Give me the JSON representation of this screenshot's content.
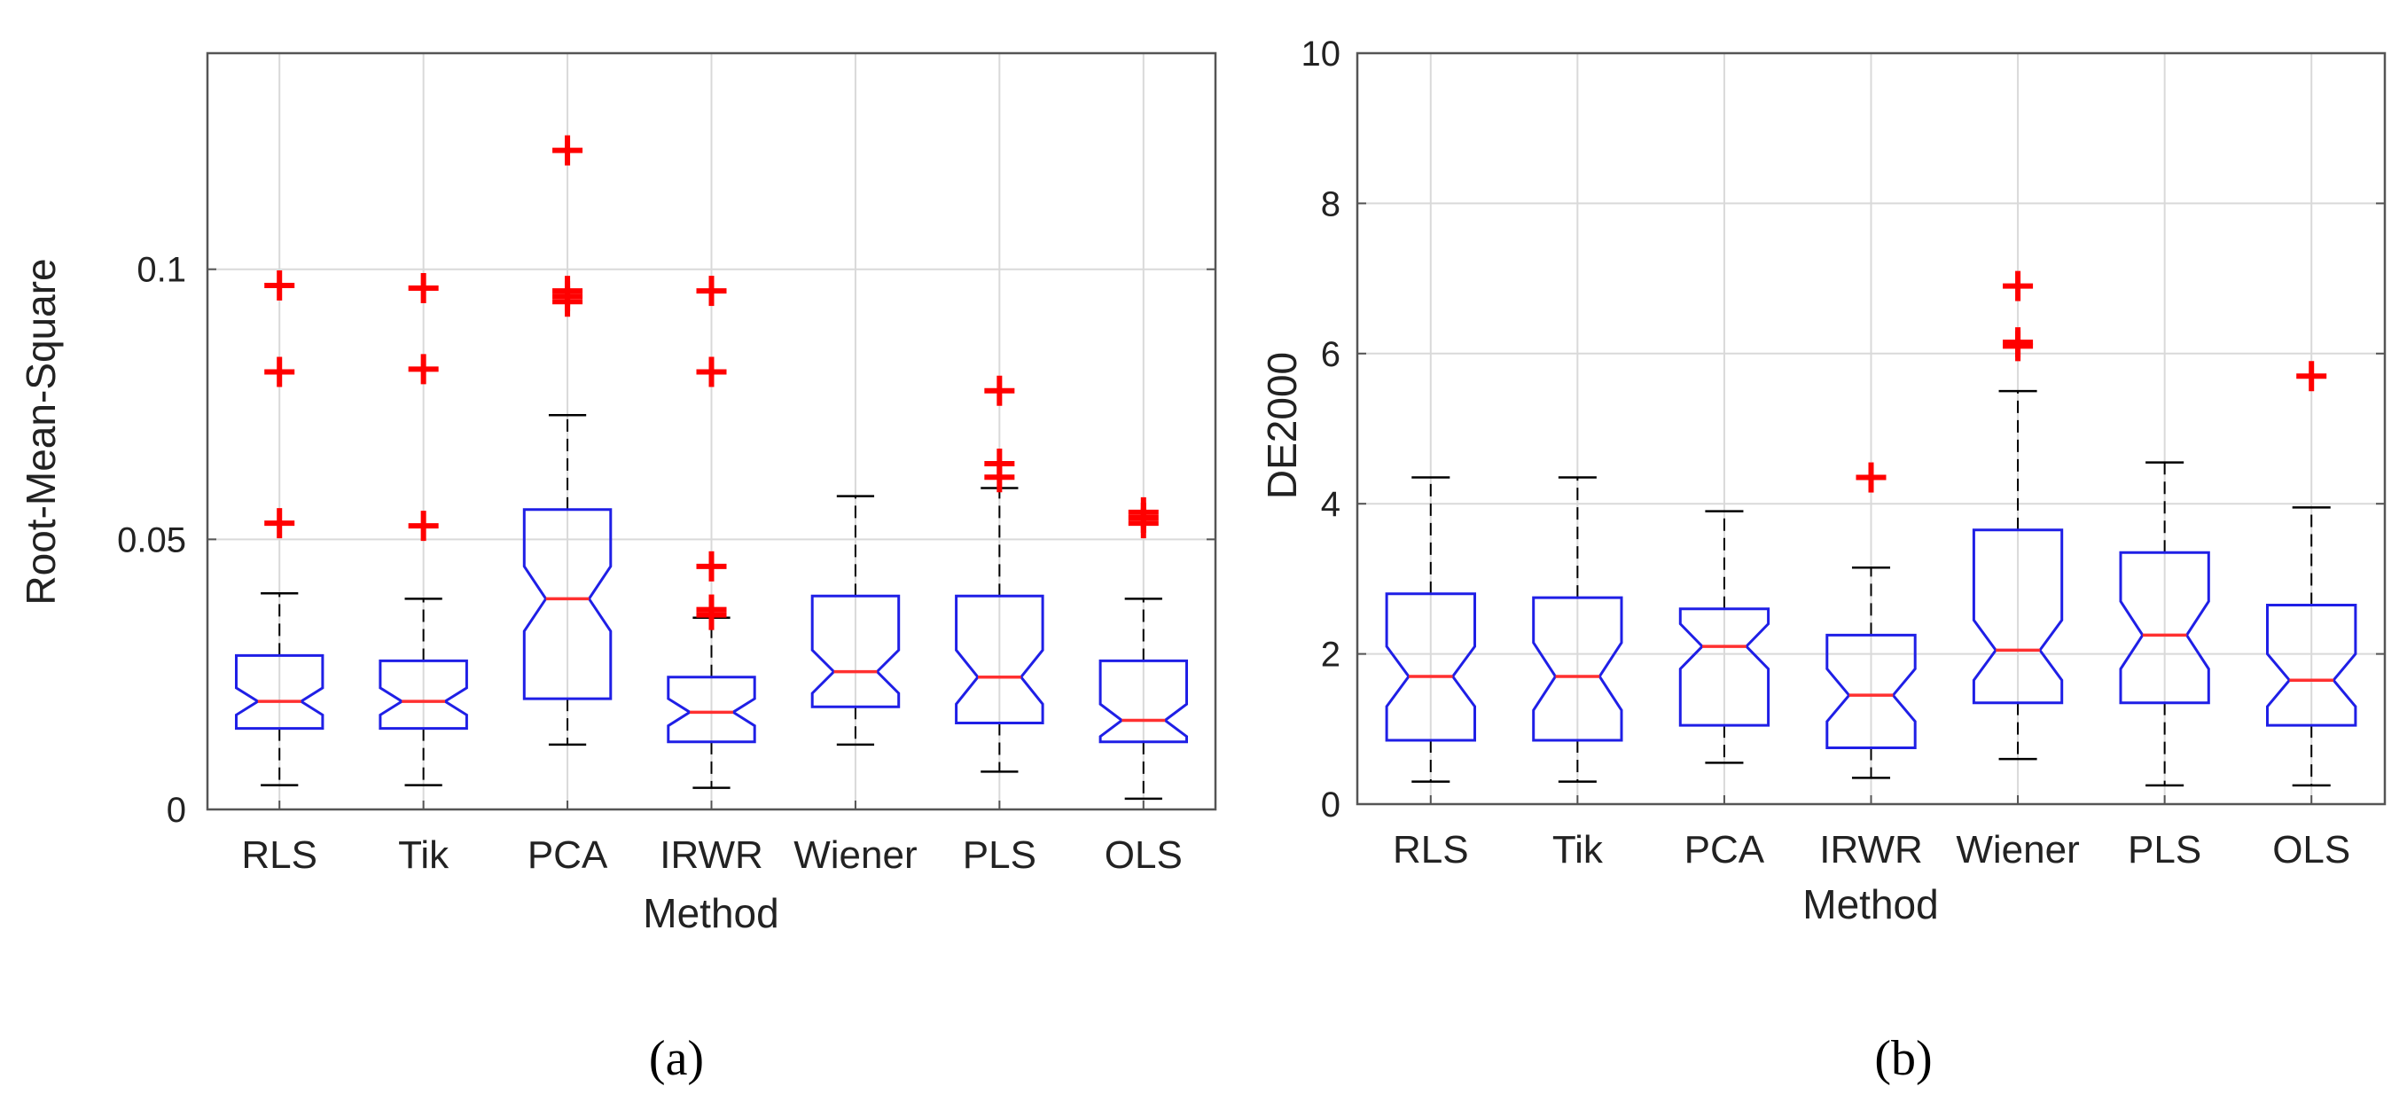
{
  "captions": {
    "a": "(a)",
    "b": "(b)"
  },
  "colors": {
    "box": "#1f1fe6",
    "median": "#ff3030",
    "whisker": "#000000",
    "outlier": "#ff0000",
    "grid": "#d9d9d9",
    "axis": "#555555"
  },
  "chart_data": [
    {
      "type": "box",
      "title": "",
      "xlabel": "Method",
      "ylabel": "Root-Mean-Square",
      "ylim": [
        0,
        0.14
      ],
      "yticks": [
        0,
        0.05,
        0.1
      ],
      "ytick_labels": [
        "0",
        "0.05",
        "0.1"
      ],
      "grid": true,
      "notched": true,
      "categories": [
        "RLS",
        "Tik",
        "PCA",
        "IRWR",
        "Wiener",
        "PLS",
        "OLS"
      ],
      "boxes": [
        {
          "label": "RLS",
          "min": 0.0045,
          "q1": 0.015,
          "median": 0.02,
          "q3": 0.0285,
          "max": 0.04,
          "notch_low": 0.0175,
          "notch_high": 0.0225,
          "outliers": [
            0.053,
            0.081,
            0.097
          ]
        },
        {
          "label": "Tik",
          "min": 0.0045,
          "q1": 0.015,
          "median": 0.02,
          "q3": 0.0275,
          "max": 0.039,
          "notch_low": 0.0175,
          "notch_high": 0.0225,
          "outliers": [
            0.0525,
            0.0815,
            0.0965
          ]
        },
        {
          "label": "PCA",
          "min": 0.012,
          "q1": 0.0205,
          "median": 0.039,
          "q3": 0.0555,
          "max": 0.073,
          "notch_low": 0.033,
          "notch_high": 0.045,
          "outliers": [
            0.094,
            0.095,
            0.096,
            0.122
          ]
        },
        {
          "label": "IRWR",
          "min": 0.004,
          "q1": 0.0125,
          "median": 0.018,
          "q3": 0.0245,
          "max": 0.0355,
          "notch_low": 0.0155,
          "notch_high": 0.0205,
          "outliers": [
            0.036,
            0.037,
            0.045,
            0.081,
            0.096
          ]
        },
        {
          "label": "Wiener",
          "min": 0.012,
          "q1": 0.019,
          "median": 0.0255,
          "q3": 0.0395,
          "max": 0.058,
          "notch_low": 0.0215,
          "notch_high": 0.0295,
          "outliers": []
        },
        {
          "label": "PLS",
          "min": 0.007,
          "q1": 0.016,
          "median": 0.0245,
          "q3": 0.0395,
          "max": 0.0595,
          "notch_low": 0.0195,
          "notch_high": 0.0295,
          "outliers": [
            0.0615,
            0.064,
            0.0775
          ]
        },
        {
          "label": "OLS",
          "min": 0.002,
          "q1": 0.0125,
          "median": 0.0165,
          "q3": 0.0275,
          "max": 0.039,
          "notch_low": 0.0135,
          "notch_high": 0.0195,
          "outliers": [
            0.053,
            0.054,
            0.055
          ]
        }
      ]
    },
    {
      "type": "box",
      "title": "",
      "xlabel": "Method",
      "ylabel": "DE2000",
      "ylim": [
        0,
        10
      ],
      "yticks": [
        0,
        2,
        4,
        6,
        8,
        10
      ],
      "ytick_labels": [
        "0",
        "2",
        "4",
        "6",
        "8",
        "10"
      ],
      "grid": true,
      "notched": true,
      "categories": [
        "RLS",
        "Tik",
        "PCA",
        "IRWR",
        "Wiener",
        "PLS",
        "OLS"
      ],
      "boxes": [
        {
          "label": "RLS",
          "min": 0.3,
          "q1": 0.85,
          "median": 1.7,
          "q3": 2.8,
          "max": 4.35,
          "notch_low": 1.3,
          "notch_high": 2.1,
          "outliers": []
        },
        {
          "label": "Tik",
          "min": 0.3,
          "q1": 0.85,
          "median": 1.7,
          "q3": 2.75,
          "max": 4.35,
          "notch_low": 1.25,
          "notch_high": 2.15,
          "outliers": []
        },
        {
          "label": "PCA",
          "min": 0.55,
          "q1": 1.05,
          "median": 2.1,
          "q3": 2.6,
          "max": 3.9,
          "notch_low": 1.8,
          "notch_high": 2.4,
          "outliers": []
        },
        {
          "label": "IRWR",
          "min": 0.35,
          "q1": 0.75,
          "median": 1.45,
          "q3": 2.25,
          "max": 3.15,
          "notch_low": 1.1,
          "notch_high": 1.8,
          "outliers": [
            4.35
          ]
        },
        {
          "label": "Wiener",
          "min": 0.6,
          "q1": 1.35,
          "median": 2.05,
          "q3": 3.65,
          "max": 5.5,
          "notch_low": 1.65,
          "notch_high": 2.45,
          "outliers": [
            6.1,
            6.15,
            6.9
          ]
        },
        {
          "label": "PLS",
          "min": 0.25,
          "q1": 1.35,
          "median": 2.25,
          "q3": 3.35,
          "max": 4.55,
          "notch_low": 1.8,
          "notch_high": 2.7,
          "outliers": []
        },
        {
          "label": "OLS",
          "min": 0.25,
          "q1": 1.05,
          "median": 1.65,
          "q3": 2.65,
          "max": 3.95,
          "notch_low": 1.3,
          "notch_high": 2.0,
          "outliers": [
            5.7
          ]
        }
      ]
    }
  ]
}
